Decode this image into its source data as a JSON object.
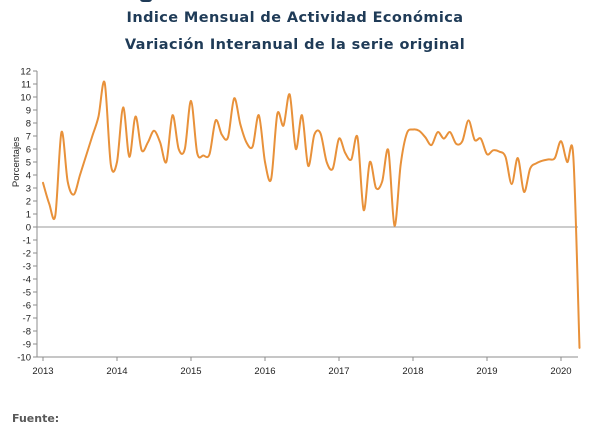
{
  "chart_data": {
    "type": "line",
    "title": "Indice Mensual de  Actividad Económica",
    "subtitle": "Variación Interanual de la serie original",
    "xlabel": "",
    "ylabel": "Porcentajes",
    "ylim": [
      -10,
      12
    ],
    "yticks": [
      12,
      11,
      10,
      9,
      8,
      7,
      6,
      5,
      4,
      3,
      2,
      1,
      0,
      -1,
      -2,
      -3,
      -4,
      -5,
      -6,
      -7,
      -8,
      -9,
      -10
    ],
    "xticks": [
      "2013",
      "2014",
      "2015",
      "2016",
      "2017",
      "2018",
      "2019",
      "2020"
    ],
    "x_start": "2013-01",
    "grid": false,
    "line_color": "#e8913a",
    "series": [
      {
        "values": [
          3.4,
          1.8,
          0.9,
          7.3,
          3.5,
          2.5,
          4.0,
          5.5,
          7.0,
          8.5,
          11.1,
          4.8,
          5.0,
          9.2,
          5.4,
          8.5,
          5.9,
          6.5,
          7.4,
          6.5,
          5.0,
          8.6,
          6.0,
          6.0,
          9.7,
          5.7,
          5.5,
          5.6,
          8.2,
          7.1,
          6.9,
          9.9,
          7.9,
          6.5,
          6.2,
          8.6,
          5.0,
          3.7,
          8.7,
          7.8,
          10.2,
          6.0,
          8.6,
          4.7,
          7.1,
          7.2,
          5.0,
          4.5,
          6.8,
          5.7,
          5.2,
          6.9,
          1.3,
          5.0,
          3.0,
          3.5,
          5.9,
          0.1,
          4.8,
          7.2,
          7.5,
          7.4,
          6.9,
          6.3,
          7.3,
          6.8,
          7.3,
          6.4,
          6.6,
          8.2,
          6.7,
          6.8,
          5.6,
          5.9,
          5.8,
          5.4,
          3.3,
          5.3,
          2.7,
          4.5,
          4.9,
          5.1,
          5.2,
          5.3,
          6.6,
          5.0,
          5.4,
          -9.3
        ]
      }
    ]
  },
  "footer": {
    "source_label": "Fuente:"
  }
}
